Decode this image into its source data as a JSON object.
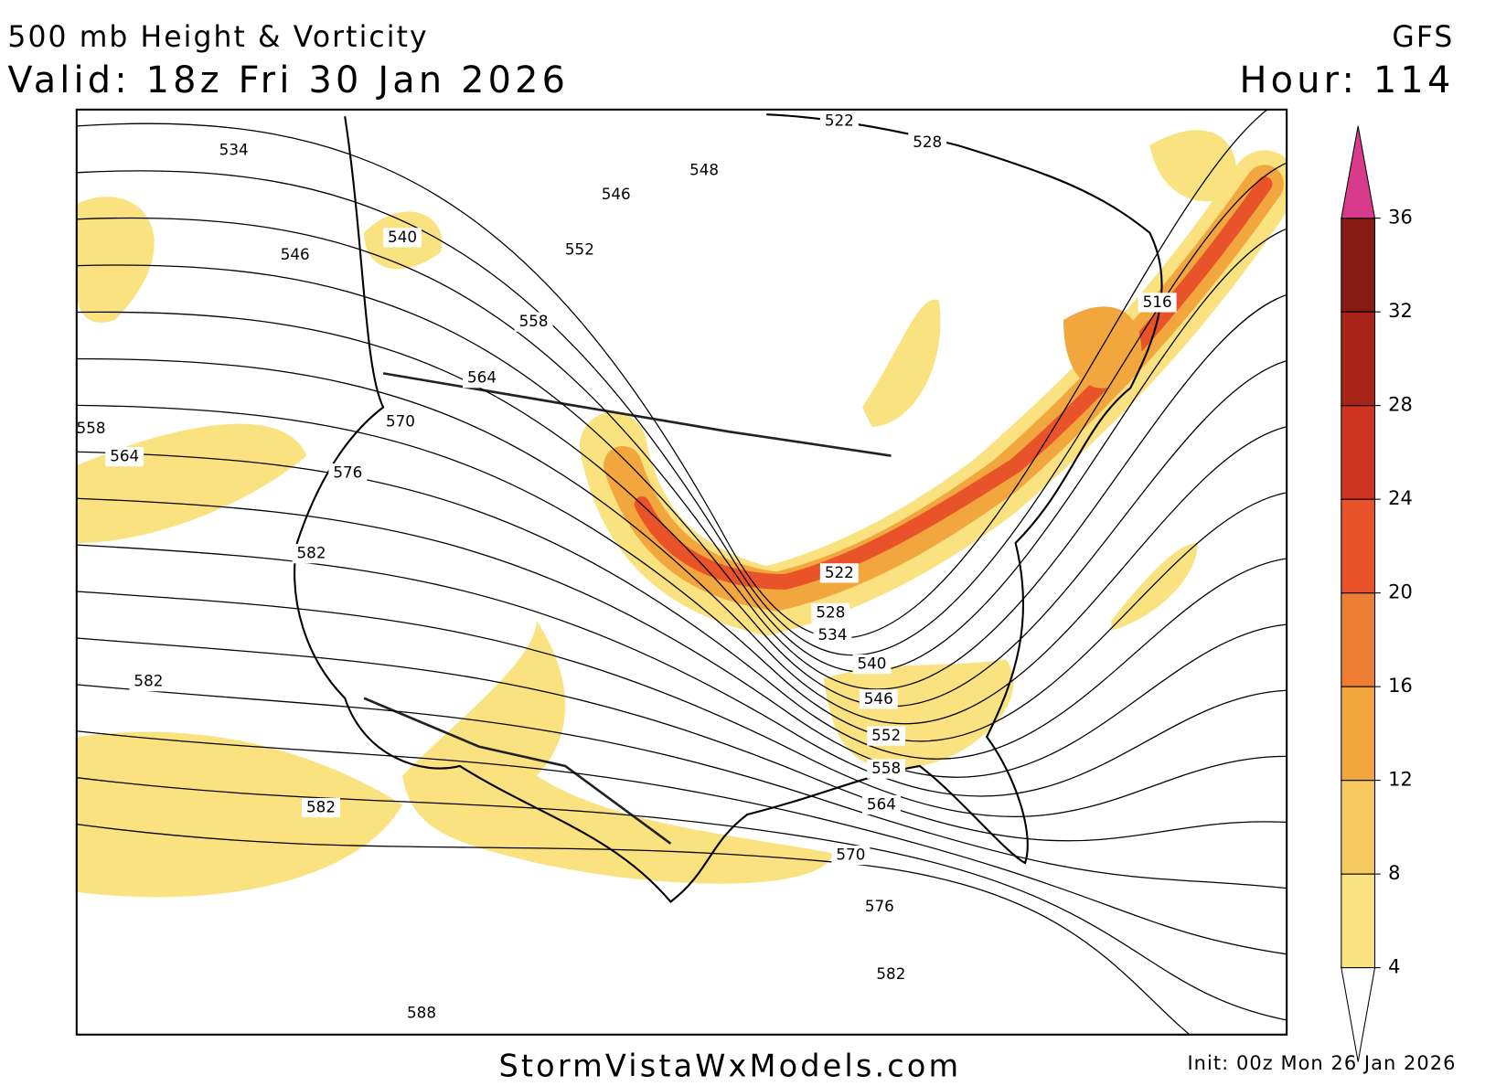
{
  "header": {
    "title": "500 mb Height & Vorticity",
    "valid": "Valid: 18z Fri 30 Jan 2026",
    "model": "GFS",
    "hour": "Hour: 114"
  },
  "footer": {
    "site": "StormVistaWxModels.com",
    "init": "Init: 00z Mon 26 Jan 2026"
  },
  "contour_labels": [
    534,
    546,
    540,
    546,
    548,
    552,
    558,
    564,
    570,
    576,
    582,
    558,
    564,
    582,
    582,
    588,
    522,
    528,
    534,
    540,
    546,
    552,
    558,
    564,
    570,
    576,
    582,
    516,
    522,
    528
  ],
  "colorbar": {
    "ticks": [
      4,
      8,
      12,
      16,
      20,
      24,
      28,
      32,
      36
    ],
    "colors": [
      "#f9e27f",
      "#f6c860",
      "#f2a63e",
      "#ed7d32",
      "#e8532a",
      "#cf3321",
      "#a82419",
      "#851b12"
    ],
    "over_color": "#d93b8c",
    "under_color": "#ffffff"
  }
}
